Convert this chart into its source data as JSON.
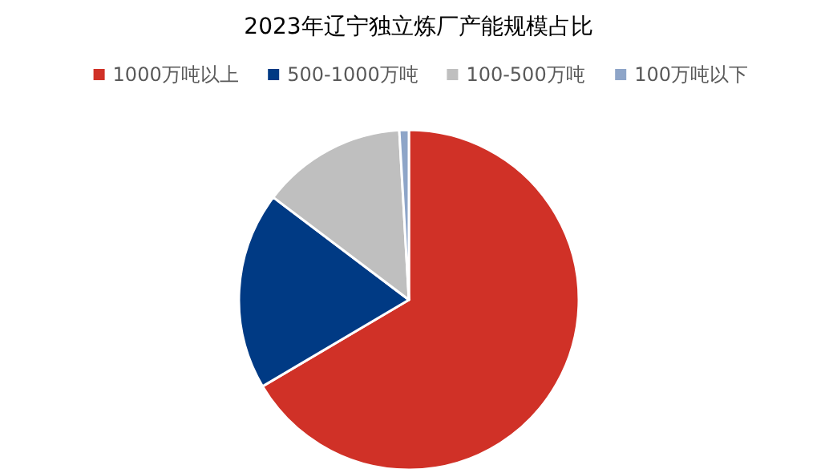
{
  "chart_data": {
    "type": "pie",
    "title": "2023年辽宁独立炼厂产能规模占比",
    "categories": [
      "1000万吨以上",
      "500-1000万吨",
      "100-500万吨",
      "100万吨以下"
    ],
    "values": [
      66.5,
      18.8,
      13.8,
      0.9
    ],
    "colors": [
      "#d03127",
      "#003a84",
      "#bfbfbf",
      "#8ea5c8"
    ],
    "legend": "top"
  }
}
